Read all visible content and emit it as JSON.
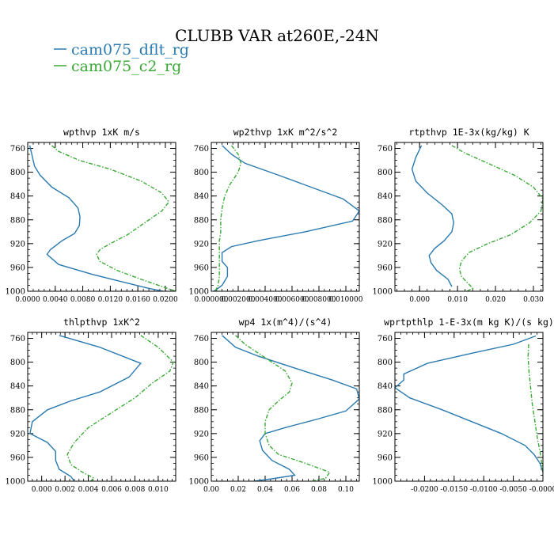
{
  "title": "CLUBB VAR at260E,-24N",
  "legend": [
    {
      "label": "cam075_dflt_rg",
      "color": "#2a7ab0",
      "dash": false
    },
    {
      "label": "cam075_c2_rg",
      "color": "#3aaa35",
      "dash": true
    }
  ],
  "chart_data": [
    {
      "type": "line",
      "title": "wpthvp  1xK m/s",
      "ylim": [
        1000,
        750
      ],
      "yticks": [
        "760",
        "800",
        "840",
        "880",
        "920",
        "960",
        "1000"
      ],
      "xlim": [
        0,
        0.0215
      ],
      "xticks": [
        "0.0000",
        "0.0040",
        "0.0080",
        "0.0120",
        "0.0160",
        "0.0200"
      ],
      "xtick_values": [
        0,
        0.004,
        0.008,
        0.012,
        0.016,
        0.02
      ],
      "series": [
        {
          "name": "cam075_dflt_rg",
          "x": [
            0.0003,
            0.0006,
            0.001,
            0.0018,
            0.0035,
            0.006,
            0.0073,
            0.0076,
            0.0075,
            0.0068,
            0.005,
            0.0033,
            0.0028,
            0.0045,
            0.0095,
            0.014,
            0.0175,
            0.0205
          ],
          "y": [
            755,
            770,
            790,
            805,
            825,
            843,
            860,
            875,
            890,
            903,
            915,
            930,
            938,
            955,
            972,
            985,
            995,
            1002
          ]
        },
        {
          "name": "cam075_c2_rg",
          "x": [
            0.0035,
            0.0045,
            0.0075,
            0.012,
            0.0165,
            0.0195,
            0.0205,
            0.0195,
            0.017,
            0.0145,
            0.012,
            0.0105,
            0.01,
            0.0105,
            0.013,
            0.0165,
            0.0195,
            0.0215
          ],
          "y": [
            755,
            765,
            780,
            795,
            815,
            835,
            850,
            865,
            885,
            905,
            920,
            930,
            938,
            950,
            965,
            980,
            992,
            1000
          ]
        }
      ]
    },
    {
      "type": "line",
      "title": "wp2thvp  1xK m^2/s^2",
      "ylim": [
        1000,
        750
      ],
      "yticks": [
        "760",
        "800",
        "840",
        "880",
        "920",
        "960",
        "1000"
      ],
      "xlim": [
        0,
        0.011
      ],
      "xticks": [
        "0.000000",
        "0.002000",
        "0.004000",
        "0.006000",
        "0.008000",
        "0.010000"
      ],
      "xtick_values": [
        0,
        0.002,
        0.004,
        0.006,
        0.008,
        0.01
      ],
      "series": [
        {
          "name": "cam075_dflt_rg",
          "x": [
            0.0008,
            0.0015,
            0.0025,
            0.005,
            0.0098,
            0.011,
            0.0105,
            0.007,
            0.0035,
            0.0015,
            0.0008,
            0.0008,
            0.0012,
            0.0012,
            0.0008,
            0.0002
          ],
          "y": [
            755,
            770,
            785,
            805,
            845,
            865,
            882,
            900,
            915,
            925,
            935,
            950,
            960,
            975,
            990,
            1000
          ]
        },
        {
          "name": "cam075_c2_rg",
          "x": [
            0.0015,
            0.002,
            0.0022,
            0.002,
            0.0014,
            0.001,
            0.0008,
            0.0007,
            0.0007,
            0.0006,
            0.0006,
            0.0006,
            0.0006,
            0.0006,
            0.0005,
            0.0003
          ],
          "y": [
            755,
            770,
            785,
            800,
            820,
            840,
            860,
            880,
            900,
            915,
            930,
            945,
            960,
            975,
            990,
            1000
          ]
        }
      ]
    },
    {
      "type": "line",
      "title": "rtpthvp  1E-3x(kg/kg) K",
      "ylim": [
        1000,
        750
      ],
      "yticks": [
        "760",
        "800",
        "840",
        "880",
        "920",
        "960",
        "1000"
      ],
      "xlim": [
        -0.0065,
        0.0325
      ],
      "xticks": [
        "0.000",
        "0.010",
        "0.020",
        "0.030"
      ],
      "xtick_values": [
        0,
        0.01,
        0.02,
        0.03
      ],
      "series": [
        {
          "name": "cam075_dflt_rg",
          "x": [
            0.0005,
            -0.001,
            -0.002,
            -0.001,
            0.002,
            0.006,
            0.0085,
            0.009,
            0.0085,
            0.0065,
            0.004,
            0.0025,
            0.003,
            0.0045,
            0.0075,
            0.0085
          ],
          "y": [
            755,
            775,
            795,
            815,
            835,
            855,
            870,
            885,
            900,
            915,
            928,
            940,
            952,
            965,
            980,
            992
          ]
        },
        {
          "name": "cam075_c2_rg",
          "x": [
            0.0085,
            0.012,
            0.018,
            0.025,
            0.03,
            0.0325,
            0.032,
            0.029,
            0.024,
            0.018,
            0.013,
            0.011,
            0.0105,
            0.011,
            0.0125,
            0.014,
            0.0125
          ],
          "y": [
            755,
            768,
            785,
            805,
            825,
            845,
            865,
            885,
            905,
            920,
            935,
            950,
            962,
            975,
            985,
            995,
            1000
          ]
        }
      ]
    },
    {
      "type": "line",
      "title": "thlpthvp  1xK^2",
      "ylim": [
        1000,
        750
      ],
      "yticks": [
        "760",
        "800",
        "840",
        "880",
        "920",
        "960",
        "1000"
      ],
      "xlim": [
        -0.0012,
        0.0115
      ],
      "xticks": [
        "0.000",
        "0.002",
        "0.004",
        "0.006",
        "0.008",
        "0.010"
      ],
      "xtick_values": [
        0,
        0.002,
        0.004,
        0.006,
        0.008,
        0.01
      ],
      "series": [
        {
          "name": "cam075_dflt_rg",
          "x": [
            0.0015,
            0.005,
            0.0085,
            0.0075,
            0.005,
            0.0025,
            0.0005,
            -0.0008,
            -0.001,
            0.0005,
            0.0012,
            0.0012,
            0.0015,
            0.0025,
            0.0028
          ],
          "y": [
            755,
            775,
            802,
            825,
            850,
            865,
            880,
            900,
            920,
            935,
            950,
            965,
            980,
            992,
            1000
          ]
        },
        {
          "name": "cam075_c2_rg",
          "x": [
            0.0085,
            0.01,
            0.0113,
            0.011,
            0.0095,
            0.008,
            0.006,
            0.004,
            0.0028,
            0.0022,
            0.0025,
            0.0035,
            0.0045,
            0.0042
          ],
          "y": [
            755,
            775,
            800,
            815,
            835,
            860,
            885,
            910,
            935,
            955,
            972,
            985,
            995,
            1000
          ]
        }
      ]
    },
    {
      "type": "line",
      "title": "wp4  1x(m^4)/(s^4)",
      "ylim": [
        1000,
        750
      ],
      "yticks": [
        "760",
        "800",
        "840",
        "880",
        "920",
        "960",
        "1000"
      ],
      "xlim": [
        0,
        0.11
      ],
      "xticks": [
        "0.00",
        "0.02",
        "0.04",
        "0.06",
        "0.08",
        "0.10"
      ],
      "xtick_values": [
        0,
        0.02,
        0.04,
        0.06,
        0.08,
        0.1
      ],
      "series": [
        {
          "name": "cam075_dflt_rg",
          "x": [
            0.008,
            0.018,
            0.035,
            0.062,
            0.09,
            0.108,
            0.11,
            0.1,
            0.08,
            0.055,
            0.04,
            0.036,
            0.038,
            0.045,
            0.058,
            0.062,
            0.045,
            0.025
          ],
          "y": [
            755,
            775,
            790,
            810,
            830,
            845,
            862,
            882,
            895,
            910,
            920,
            932,
            948,
            965,
            980,
            990,
            996,
            1002
          ]
        },
        {
          "name": "cam075_c2_rg",
          "x": [
            0.018,
            0.025,
            0.035,
            0.055,
            0.06,
            0.058,
            0.05,
            0.043,
            0.04,
            0.04,
            0.043,
            0.05,
            0.07,
            0.088,
            0.085,
            0.075,
            0.06,
            0.045
          ],
          "y": [
            755,
            770,
            785,
            815,
            835,
            850,
            865,
            880,
            900,
            920,
            940,
            955,
            970,
            985,
            995,
            1000,
            1004,
            1006
          ]
        }
      ]
    },
    {
      "type": "line",
      "title": "wprtpthlp  1-E-3x(m kg K)/(s kg)",
      "ylim": [
        1000,
        750
      ],
      "yticks": [
        "760",
        "800",
        "840",
        "880",
        "920",
        "960",
        "1000"
      ],
      "xlim": [
        -0.025,
        0
      ],
      "xticks": [
        "-0.0200",
        "-0.0150",
        "-0.0100",
        "-0.0050",
        "-0.0000"
      ],
      "xtick_values": [
        -0.02,
        -0.015,
        -0.01,
        -0.005,
        0
      ],
      "series": [
        {
          "name": "cam075_dflt_rg",
          "x": [
            -0.0012,
            -0.005,
            -0.012,
            -0.0195,
            -0.0235,
            -0.0235,
            -0.025,
            -0.0225,
            -0.017,
            -0.012,
            -0.007,
            -0.003,
            -0.0015,
            -0.0005,
            0
          ],
          "y": [
            756,
            770,
            785,
            802,
            820,
            830,
            843,
            860,
            880,
            900,
            920,
            940,
            955,
            970,
            985
          ]
        },
        {
          "name": "cam075_c2_rg",
          "x": [
            -0.0024,
            -0.0025,
            -0.0024,
            -0.0022,
            -0.002,
            -0.0018,
            -0.0015,
            -0.0012,
            -0.0009,
            -0.0005,
            -0.0002,
            0
          ],
          "y": [
            770,
            790,
            810,
            830,
            850,
            870,
            890,
            910,
            930,
            950,
            970,
            985
          ]
        }
      ]
    }
  ]
}
